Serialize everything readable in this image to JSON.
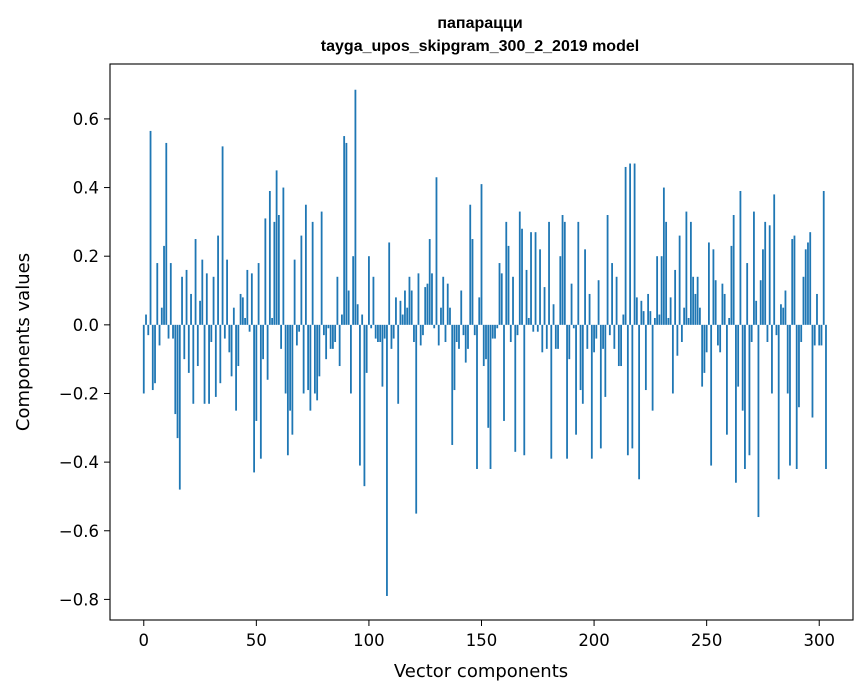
{
  "chart_data": {
    "type": "bar",
    "title": "папарацци",
    "subtitle": "tayga_upos_skipgram_300_2_2019 model",
    "xlabel": "Vector components",
    "ylabel": "Components values",
    "xlim": [
      -15,
      315
    ],
    "ylim": [
      -0.86,
      0.76
    ],
    "xticks": [
      0,
      50,
      100,
      150,
      200,
      250,
      300
    ],
    "xtick_labels": [
      "0",
      "50",
      "100",
      "150",
      "200",
      "250",
      "300"
    ],
    "yticks": [
      -0.8,
      -0.6,
      -0.4,
      -0.2,
      0.0,
      0.2,
      0.4,
      0.6
    ],
    "ytick_labels": [
      "−0.8",
      "−0.6",
      "−0.4",
      "−0.2",
      "0.0",
      "0.2",
      "0.4",
      "0.6"
    ],
    "grid": false,
    "bar_color": "#1f77b4",
    "x_start": 0,
    "values": [
      -0.2,
      0.03,
      -0.03,
      0.565,
      -0.19,
      -0.17,
      0.18,
      -0.06,
      0.05,
      0.23,
      0.53,
      -0.04,
      0.18,
      -0.04,
      -0.26,
      -0.33,
      -0.48,
      0.14,
      -0.1,
      0.16,
      -0.14,
      0.09,
      -0.23,
      0.25,
      -0.12,
      0.07,
      0.19,
      -0.23,
      0.15,
      -0.23,
      -0.05,
      0.14,
      -0.21,
      0.26,
      -0.17,
      0.52,
      -0.04,
      0.19,
      -0.08,
      -0.15,
      0.05,
      -0.25,
      -0.12,
      0.09,
      0.08,
      0.02,
      0.16,
      -0.02,
      0.15,
      -0.43,
      -0.28,
      0.18,
      -0.39,
      -0.1,
      0.31,
      -0.16,
      0.39,
      0.02,
      0.3,
      0.45,
      0.32,
      -0.07,
      0.4,
      -0.2,
      -0.38,
      -0.25,
      -0.32,
      0.19,
      -0.06,
      -0.02,
      0.26,
      -0.2,
      0.35,
      -0.19,
      -0.25,
      0.3,
      -0.2,
      -0.22,
      -0.15,
      0.33,
      -0.03,
      -0.1,
      -0.01,
      -0.07,
      -0.07,
      -0.05,
      0.14,
      -0.12,
      0.03,
      0.55,
      0.53,
      0.1,
      -0.2,
      0.2,
      0.685,
      0.06,
      -0.41,
      0.03,
      -0.47,
      -0.14,
      0.2,
      -0.01,
      0.14,
      -0.04,
      -0.05,
      -0.05,
      -0.18,
      -0.04,
      -0.79,
      0.24,
      -0.07,
      -0.04,
      0.08,
      -0.23,
      0.07,
      0.03,
      0.1,
      0.05,
      0.14,
      0.1,
      -0.05,
      -0.55,
      0.15,
      -0.06,
      -0.03,
      0.11,
      0.12,
      0.25,
      0.15,
      -0.01,
      0.43,
      -0.06,
      0.05,
      0.14,
      -0.05,
      0.12,
      0.05,
      -0.35,
      -0.19,
      -0.05,
      -0.07,
      0.1,
      -0.03,
      -0.11,
      -0.07,
      0.35,
      0.25,
      -0.03,
      -0.42,
      0.08,
      0.41,
      -0.12,
      -0.1,
      -0.3,
      -0.42,
      -0.04,
      -0.04,
      -0.01,
      0.18,
      0.15,
      -0.28,
      0.3,
      0.23,
      -0.05,
      0.14,
      -0.37,
      -0.03,
      0.33,
      0.28,
      -0.38,
      0.16,
      0.02,
      0.27,
      -0.02,
      0.27,
      -0.02,
      0.22,
      -0.08,
      0.11,
      -0.07,
      0.3,
      -0.39,
      0.06,
      -0.07,
      -0.07,
      0.2,
      0.32,
      0.3,
      -0.39,
      -0.1,
      0.12,
      -0.01,
      -0.32,
      0.3,
      -0.19,
      -0.23,
      0.22,
      -0.07,
      0.09,
      -0.39,
      -0.08,
      -0.04,
      0.13,
      -0.36,
      -0.07,
      -0.21,
      0.32,
      -0.03,
      0.18,
      -0.07,
      0.14,
      -0.12,
      -0.12,
      0.03,
      0.46,
      -0.38,
      0.47,
      -0.36,
      0.47,
      0.08,
      -0.45,
      0.07,
      0.04,
      -0.19,
      0.09,
      0.04,
      -0.25,
      0.02,
      0.2,
      0.03,
      0.2,
      0.4,
      0.3,
      0.02,
      0.08,
      -0.2,
      0.16,
      -0.09,
      0.26,
      -0.05,
      0.05,
      0.33,
      0.02,
      0.3,
      0.14,
      0.09,
      0.14,
      0.05,
      -0.18,
      -0.14,
      -0.08,
      0.24,
      -0.41,
      0.22,
      0.13,
      -0.06,
      -0.08,
      0.12,
      0.09,
      -0.32,
      0.02,
      0.23,
      0.32,
      -0.46,
      -0.18,
      0.39,
      -0.25,
      -0.42,
      0.18,
      -0.38,
      -0.05,
      0.33,
      0.07,
      -0.56,
      0.13,
      0.22,
      0.3,
      -0.05,
      0.29,
      -0.2,
      0.38,
      -0.03,
      -0.45,
      0.06,
      0.05,
      0.1,
      -0.2,
      -0.41,
      0.25,
      0.26,
      -0.42,
      -0.24,
      -0.05,
      0.14,
      0.22,
      0.24,
      0.27,
      -0.27,
      -0.06,
      0.09,
      -0.06,
      -0.06,
      0.39,
      -0.42
    ]
  }
}
